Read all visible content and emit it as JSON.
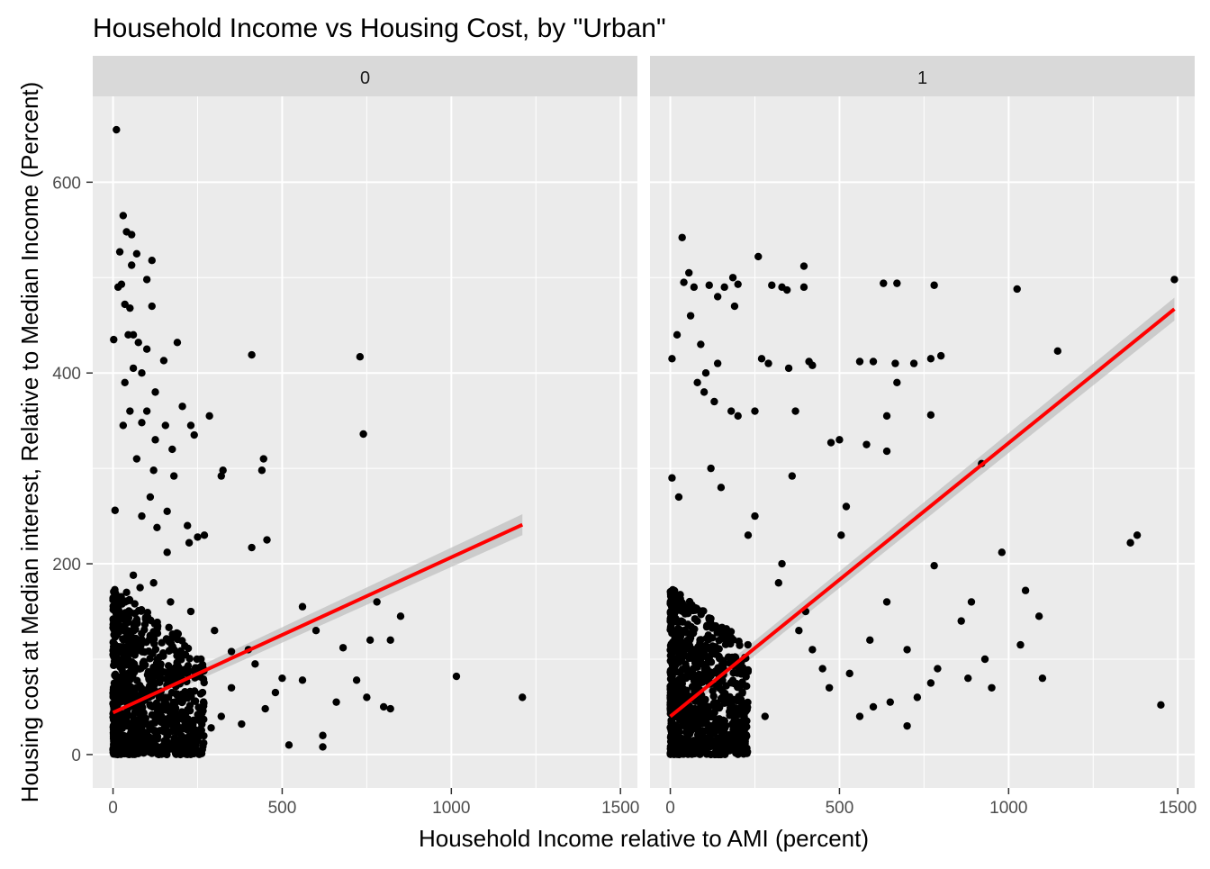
{
  "chart_data": {
    "type": "scatter",
    "title": "Household Income vs Housing Cost, by \"Urban\"",
    "xlabel": "Household Income relative to AMI (percent)",
    "ylabel": "Housing cost at Median interest, Relative to Median Income (Percent)",
    "xlim": [
      -60,
      1550
    ],
    "ylim": [
      -35,
      690
    ],
    "xticks": [
      0,
      500,
      1000,
      1500
    ],
    "yticks": [
      0,
      200,
      400,
      600
    ],
    "grid": true,
    "legend": "none",
    "colors": {
      "points": "#000000",
      "fit_line": "#ff0000",
      "confidence_band": "#bebebe",
      "panel_background": "#ebebeb",
      "strip_background": "#d9d9d9",
      "gridline": "#ffffff"
    },
    "facets": [
      {
        "label": "0",
        "fit": {
          "x": [
            0,
            1210
          ],
          "y": [
            44,
            241
          ],
          "se_at_ends": [
            6,
            11
          ]
        },
        "points": [
          [
            10,
            655
          ],
          [
            30,
            565
          ],
          [
            40,
            548
          ],
          [
            55,
            545
          ],
          [
            20,
            527
          ],
          [
            70,
            525
          ],
          [
            115,
            518
          ],
          [
            55,
            513
          ],
          [
            25,
            493
          ],
          [
            15,
            490
          ],
          [
            35,
            472
          ],
          [
            100,
            498
          ],
          [
            50,
            468
          ],
          [
            115,
            470
          ],
          [
            2,
            435
          ],
          [
            45,
            440
          ],
          [
            60,
            440
          ],
          [
            75,
            432
          ],
          [
            100,
            425
          ],
          [
            190,
            432
          ],
          [
            150,
            413
          ],
          [
            60,
            405
          ],
          [
            85,
            400
          ],
          [
            35,
            390
          ],
          [
            125,
            380
          ],
          [
            30,
            345
          ],
          [
            85,
            348
          ],
          [
            50,
            360
          ],
          [
            100,
            360
          ],
          [
            155,
            345
          ],
          [
            205,
            365
          ],
          [
            230,
            345
          ],
          [
            285,
            355
          ],
          [
            125,
            330
          ],
          [
            240,
            335
          ],
          [
            175,
            320
          ],
          [
            70,
            310
          ],
          [
            180,
            292
          ],
          [
            325,
            298
          ],
          [
            320,
            292
          ],
          [
            120,
            298
          ],
          [
            110,
            270
          ],
          [
            160,
            255
          ],
          [
            250,
            228
          ],
          [
            270,
            230
          ],
          [
            220,
            240
          ],
          [
            6,
            256
          ],
          [
            130,
            238
          ],
          [
            85,
            250
          ],
          [
            225,
            222
          ],
          [
            160,
            212
          ],
          [
            410,
            217
          ],
          [
            455,
            225
          ],
          [
            445,
            310
          ],
          [
            440,
            298
          ],
          [
            730,
            417
          ],
          [
            740,
            336
          ],
          [
            410,
            419
          ],
          [
            780,
            160
          ],
          [
            850,
            145
          ],
          [
            820,
            120
          ],
          [
            560,
            155
          ],
          [
            600,
            130
          ],
          [
            760,
            120
          ],
          [
            680,
            112
          ],
          [
            400,
            110
          ],
          [
            350,
            108
          ],
          [
            420,
            95
          ],
          [
            500,
            80
          ],
          [
            560,
            78
          ],
          [
            1015,
            82
          ],
          [
            1210,
            60
          ],
          [
            800,
            50
          ],
          [
            820,
            48
          ],
          [
            720,
            78
          ],
          [
            620,
            20
          ],
          [
            620,
            8
          ],
          [
            520,
            10
          ],
          [
            660,
            55
          ],
          [
            750,
            60
          ],
          [
            320,
            40
          ],
          [
            290,
            28
          ],
          [
            250,
            20
          ],
          [
            380,
            32
          ],
          [
            450,
            48
          ],
          [
            200,
            60
          ],
          [
            230,
            150
          ],
          [
            300,
            130
          ],
          [
            170,
            160
          ],
          [
            120,
            180
          ],
          [
            80,
            175
          ],
          [
            60,
            188
          ],
          [
            40,
            170
          ],
          [
            260,
            100
          ],
          [
            350,
            70
          ],
          [
            480,
            65
          ]
        ]
      },
      {
        "label": "1",
        "fit": {
          "x": [
            0,
            1490
          ],
          "y": [
            40,
            467
          ],
          "se_at_ends": [
            7,
            12
          ]
        },
        "points": [
          [
            35,
            542
          ],
          [
            55,
            505
          ],
          [
            40,
            495
          ],
          [
            70,
            490
          ],
          [
            115,
            492
          ],
          [
            160,
            490
          ],
          [
            185,
            500
          ],
          [
            200,
            493
          ],
          [
            260,
            522
          ],
          [
            300,
            492
          ],
          [
            330,
            490
          ],
          [
            345,
            487
          ],
          [
            395,
            512
          ],
          [
            395,
            490
          ],
          [
            630,
            494
          ],
          [
            670,
            494
          ],
          [
            780,
            492
          ],
          [
            1025,
            488
          ],
          [
            1490,
            498
          ],
          [
            5,
            415
          ],
          [
            20,
            440
          ],
          [
            60,
            460
          ],
          [
            90,
            430
          ],
          [
            105,
            400
          ],
          [
            140,
            410
          ],
          [
            80,
            390
          ],
          [
            100,
            380
          ],
          [
            130,
            370
          ],
          [
            180,
            360
          ],
          [
            200,
            355
          ],
          [
            250,
            360
          ],
          [
            270,
            415
          ],
          [
            290,
            410
          ],
          [
            350,
            405
          ],
          [
            370,
            360
          ],
          [
            410,
            412
          ],
          [
            420,
            408
          ],
          [
            560,
            412
          ],
          [
            600,
            412
          ],
          [
            665,
            410
          ],
          [
            720,
            410
          ],
          [
            770,
            415
          ],
          [
            800,
            418
          ],
          [
            670,
            390
          ],
          [
            640,
            355
          ],
          [
            580,
            325
          ],
          [
            500,
            330
          ],
          [
            475,
            327
          ],
          [
            360,
            292
          ],
          [
            640,
            318
          ],
          [
            770,
            356
          ],
          [
            920,
            305
          ],
          [
            1145,
            423
          ],
          [
            1360,
            222
          ],
          [
            1380,
            230
          ],
          [
            980,
            212
          ],
          [
            1050,
            172
          ],
          [
            1090,
            145
          ],
          [
            1035,
            115
          ],
          [
            1450,
            52
          ],
          [
            890,
            160
          ],
          [
            860,
            140
          ],
          [
            930,
            100
          ],
          [
            880,
            80
          ],
          [
            790,
            90
          ],
          [
            770,
            75
          ],
          [
            730,
            60
          ],
          [
            700,
            30
          ],
          [
            650,
            55
          ],
          [
            600,
            50
          ],
          [
            560,
            40
          ],
          [
            530,
            85
          ],
          [
            470,
            70
          ],
          [
            450,
            90
          ],
          [
            420,
            110
          ],
          [
            400,
            150
          ],
          [
            380,
            130
          ],
          [
            780,
            198
          ],
          [
            640,
            160
          ],
          [
            590,
            120
          ],
          [
            1100,
            80
          ],
          [
            950,
            70
          ],
          [
            700,
            110
          ],
          [
            520,
            260
          ],
          [
            505,
            230
          ],
          [
            330,
            200
          ],
          [
            250,
            250
          ],
          [
            230,
            230
          ],
          [
            5,
            290
          ],
          [
            25,
            270
          ],
          [
            120,
            300
          ],
          [
            150,
            280
          ],
          [
            140,
            480
          ],
          [
            190,
            470
          ],
          [
            320,
            180
          ],
          [
            280,
            40
          ]
        ]
      }
    ]
  }
}
